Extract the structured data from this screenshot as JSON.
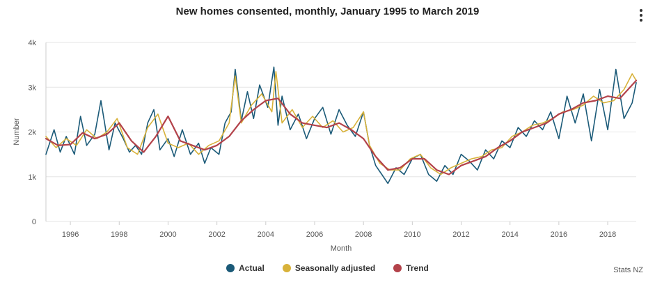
{
  "title": "New homes consented, monthly, January 1995 to March 2019",
  "menu_icon": "more-vertical-icon",
  "credit": "Stats NZ",
  "legend": [
    {
      "label": "Actual",
      "color": "#1b5a78"
    },
    {
      "label": "Seasonally adjusted",
      "color": "#d8b23a"
    },
    {
      "label": "Trend",
      "color": "#b3424a"
    }
  ],
  "chart_data": {
    "type": "line",
    "xlabel": "Month",
    "ylabel": "Number",
    "xlim": [
      "1995-01",
      "2019-03"
    ],
    "ylim": [
      0,
      4000
    ],
    "x_ticks": [
      "1996",
      "1998",
      "2000",
      "2002",
      "2004",
      "2006",
      "2008",
      "2010",
      "2012",
      "2014",
      "2016",
      "2018"
    ],
    "y_ticks": [
      "0",
      "1k",
      "2k",
      "3k",
      "4k"
    ],
    "grid": true,
    "legend_position": "bottom",
    "series": [
      {
        "name": "Trend",
        "color": "#b3424a",
        "x": [
          "1995-01",
          "1995-07",
          "1996-01",
          "1996-07",
          "1997-01",
          "1997-07",
          "1998-01",
          "1998-07",
          "1999-01",
          "1999-07",
          "2000-01",
          "2000-07",
          "2001-01",
          "2001-07",
          "2002-01",
          "2002-07",
          "2003-01",
          "2003-07",
          "2004-01",
          "2004-07",
          "2005-01",
          "2005-07",
          "2006-01",
          "2006-07",
          "2007-01",
          "2007-07",
          "2008-01",
          "2008-07",
          "2009-01",
          "2009-07",
          "2010-01",
          "2010-07",
          "2011-01",
          "2011-07",
          "2012-01",
          "2012-07",
          "2013-01",
          "2013-07",
          "2014-01",
          "2014-07",
          "2015-01",
          "2015-07",
          "2016-01",
          "2016-07",
          "2017-01",
          "2017-07",
          "2018-01",
          "2018-07",
          "2019-03"
        ],
        "values": [
          1850,
          1700,
          1720,
          1980,
          1850,
          1950,
          2200,
          1800,
          1550,
          1900,
          2350,
          1800,
          1700,
          1600,
          1700,
          1900,
          2250,
          2500,
          2700,
          2750,
          2400,
          2200,
          2150,
          2100,
          2200,
          2050,
          1850,
          1450,
          1150,
          1200,
          1400,
          1400,
          1150,
          1050,
          1250,
          1350,
          1450,
          1650,
          1800,
          2000,
          2100,
          2200,
          2400,
          2500,
          2650,
          2700,
          2800,
          2750,
          3150
        ]
      },
      {
        "name": "Seasonally adjusted",
        "color": "#d8b23a",
        "x": [
          "1995-01",
          "1995-06",
          "1995-11",
          "1996-04",
          "1996-09",
          "1997-02",
          "1997-07",
          "1997-12",
          "1998-05",
          "1998-10",
          "1999-03",
          "1999-08",
          "2000-01",
          "2000-06",
          "2000-11",
          "2001-04",
          "2001-09",
          "2002-02",
          "2002-07",
          "2002-10",
          "2003-01",
          "2003-06",
          "2003-11",
          "2004-04",
          "2004-06",
          "2004-09",
          "2005-02",
          "2005-07",
          "2005-12",
          "2006-05",
          "2006-10",
          "2007-03",
          "2007-08",
          "2008-01",
          "2008-04",
          "2008-09",
          "2009-02",
          "2009-07",
          "2009-12",
          "2010-05",
          "2010-10",
          "2011-03",
          "2011-08",
          "2012-01",
          "2012-06",
          "2012-11",
          "2013-04",
          "2013-09",
          "2014-02",
          "2014-07",
          "2014-12",
          "2015-05",
          "2015-10",
          "2016-03",
          "2016-08",
          "2017-01",
          "2017-06",
          "2017-11",
          "2018-04",
          "2018-09",
          "2019-01",
          "2019-03"
        ],
        "values": [
          1900,
          1650,
          1850,
          1700,
          2050,
          1850,
          2000,
          2300,
          1650,
          1500,
          2100,
          2400,
          1750,
          1650,
          1750,
          1500,
          1700,
          1800,
          2200,
          3250,
          2200,
          2600,
          2850,
          2450,
          3350,
          2200,
          2500,
          2100,
          2350,
          2100,
          2250,
          2000,
          2100,
          2450,
          1700,
          1300,
          1150,
          1150,
          1400,
          1500,
          1200,
          1050,
          1200,
          1300,
          1400,
          1450,
          1600,
          1650,
          1900,
          2000,
          2150,
          2200,
          2300,
          2450,
          2500,
          2600,
          2800,
          2650,
          2700,
          2950,
          3300,
          3150
        ]
      },
      {
        "name": "Actual",
        "color": "#1b5a78",
        "x": [
          "1995-01",
          "1995-05",
          "1995-08",
          "1995-11",
          "1996-03",
          "1996-06",
          "1996-09",
          "1997-01",
          "1997-04",
          "1997-08",
          "1997-11",
          "1998-03",
          "1998-06",
          "1998-09",
          "1998-12",
          "1999-03",
          "1999-06",
          "1999-09",
          "2000-01",
          "2000-04",
          "2000-08",
          "2000-12",
          "2001-04",
          "2001-07",
          "2001-10",
          "2002-02",
          "2002-05",
          "2002-08",
          "2002-10",
          "2003-01",
          "2003-04",
          "2003-07",
          "2003-10",
          "2004-02",
          "2004-05",
          "2004-07",
          "2004-09",
          "2005-01",
          "2005-05",
          "2005-09",
          "2006-01",
          "2006-05",
          "2006-09",
          "2007-01",
          "2007-05",
          "2007-09",
          "2008-01",
          "2008-04",
          "2008-07",
          "2008-10",
          "2009-01",
          "2009-05",
          "2009-09",
          "2010-01",
          "2010-05",
          "2010-09",
          "2011-01",
          "2011-05",
          "2011-09",
          "2012-01",
          "2012-05",
          "2012-09",
          "2013-01",
          "2013-05",
          "2013-09",
          "2014-01",
          "2014-05",
          "2014-09",
          "2015-01",
          "2015-05",
          "2015-09",
          "2016-01",
          "2016-05",
          "2016-09",
          "2017-01",
          "2017-05",
          "2017-09",
          "2018-01",
          "2018-05",
          "2018-09",
          "2019-01",
          "2019-03"
        ],
        "values": [
          1500,
          2050,
          1550,
          1900,
          1500,
          2350,
          1700,
          1950,
          2700,
          1600,
          2200,
          1850,
          1550,
          1700,
          1500,
          2200,
          2500,
          1600,
          1850,
          1450,
          2050,
          1500,
          1750,
          1300,
          1650,
          1500,
          2200,
          2450,
          3400,
          2250,
          2900,
          2300,
          3050,
          2550,
          3450,
          2150,
          2800,
          2050,
          2400,
          1850,
          2300,
          2550,
          1950,
          2500,
          2150,
          1900,
          2450,
          1700,
          1250,
          1050,
          850,
          1200,
          1050,
          1400,
          1500,
          1050,
          900,
          1250,
          1050,
          1500,
          1350,
          1150,
          1600,
          1400,
          1800,
          1650,
          2100,
          1900,
          2250,
          2050,
          2450,
          1850,
          2800,
          2200,
          2850,
          1800,
          2950,
          2050,
          3400,
          2300,
          2650,
          3100
        ]
      }
    ]
  }
}
